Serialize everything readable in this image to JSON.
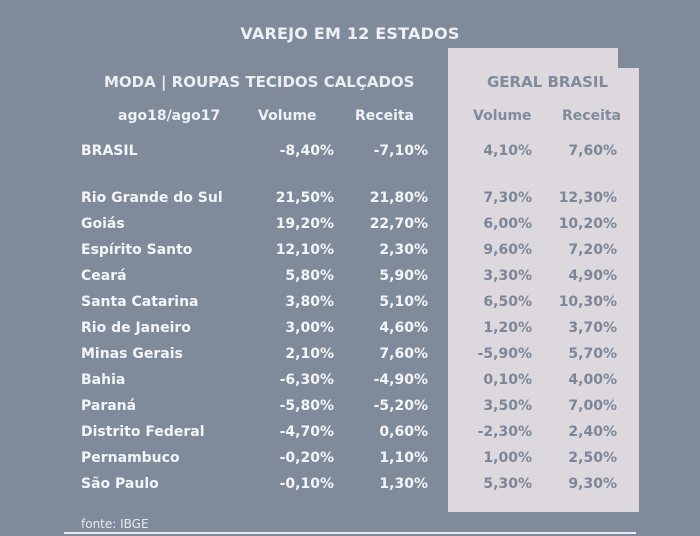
{
  "chart_data": {
    "type": "table",
    "title": "VAREJO EM 12 ESTADOS",
    "left_section": "MODA | ROUPAS TECIDOS CALÇADOS",
    "right_section": "GERAL BRASIL",
    "period_label": "ago18/ago17",
    "columns": [
      "Volume",
      "Receita",
      "Volume",
      "Receita"
    ],
    "rows": [
      {
        "name": "BRASIL",
        "values": [
          "-8,40%",
          "-7,10%",
          "4,10%",
          "7,60%"
        ]
      },
      {
        "name": "Rio Grande do Sul",
        "values": [
          "21,50%",
          "21,80%",
          "7,30%",
          "12,30%"
        ]
      },
      {
        "name": "Goiás",
        "values": [
          "19,20%",
          "22,70%",
          "6,00%",
          "10,20%"
        ]
      },
      {
        "name": "Espírito Santo",
        "values": [
          "12,10%",
          "2,30%",
          "9,60%",
          "7,20%"
        ]
      },
      {
        "name": "Ceará",
        "values": [
          "5,80%",
          "5,90%",
          "3,30%",
          "4,90%"
        ]
      },
      {
        "name": "Santa Catarina",
        "values": [
          "3,80%",
          "5,10%",
          "6,50%",
          "10,30%"
        ]
      },
      {
        "name": "Rio de Janeiro",
        "values": [
          "3,00%",
          "4,60%",
          "1,20%",
          "3,70%"
        ]
      },
      {
        "name": "Minas Gerais",
        "values": [
          "2,10%",
          "7,60%",
          "-5,90%",
          "5,70%"
        ]
      },
      {
        "name": "Bahia",
        "values": [
          "-6,30%",
          "-4,90%",
          "0,10%",
          "4,00%"
        ]
      },
      {
        "name": "Paraná",
        "values": [
          "-5,80%",
          "-5,20%",
          "3,50%",
          "7,00%"
        ]
      },
      {
        "name": "Distrito Federal",
        "values": [
          "-4,70%",
          "0,60%",
          "-2,30%",
          "2,40%"
        ]
      },
      {
        "name": "Pernambuco",
        "values": [
          "-0,20%",
          "1,10%",
          "1,00%",
          "2,50%"
        ]
      },
      {
        "name": "São Paulo",
        "values": [
          "-0,10%",
          "1,30%",
          "5,30%",
          "9,30%"
        ]
      }
    ],
    "source": "fonte: IBGE"
  },
  "colors": {
    "background": "#7f8b9b",
    "panel": "#ddd7de",
    "light_text": "#f4f5f8",
    "panel_text": "#7b8798"
  }
}
